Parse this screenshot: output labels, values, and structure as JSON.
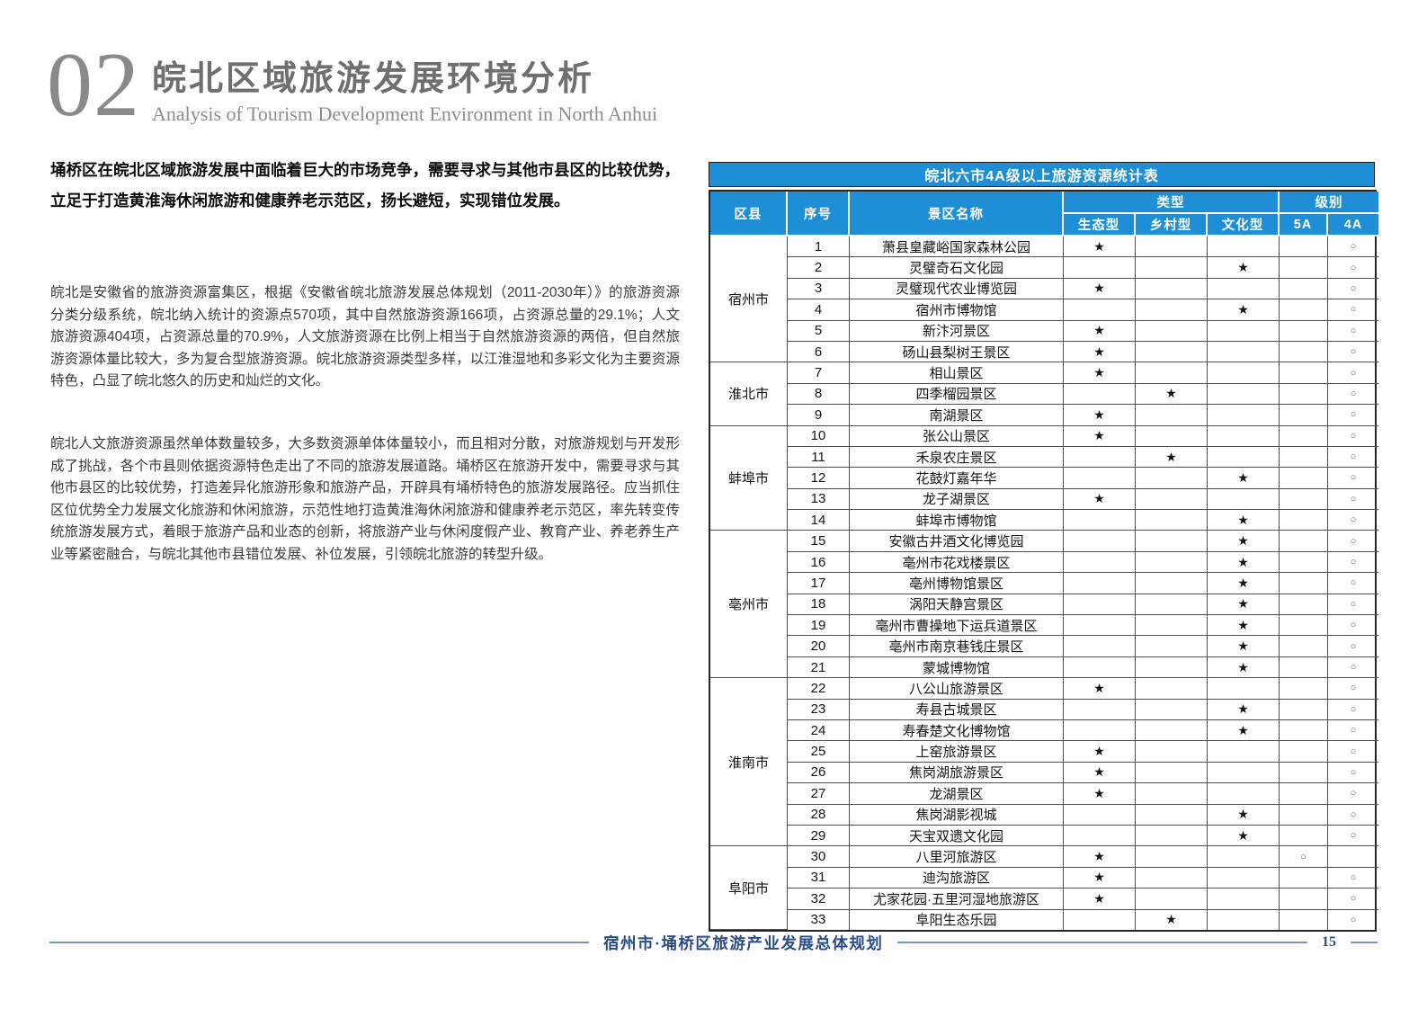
{
  "header": {
    "section_number": "02",
    "title_cn": "皖北区域旅游发展环境分析",
    "title_en": "Analysis of Tourism Development Environment in North Anhui"
  },
  "intro": {
    "lead_paragraph": "埇桥区在皖北区域旅游发展中面临着巨大的市场竞争，需要寻求与其他市县区的比较优势，立足于打造黄淮海休闲旅游和健康养老示范区，扬长避短，实现错位发展。",
    "paragraphs": [
      "皖北是安徽省的旅游资源富集区，根据《安徽省皖北旅游发展总体规划（2011-2030年）》的旅游资源分类分级系统，皖北纳入统计的资源点570项，其中自然旅游资源166项，占资源总量的29.1%；人文旅游资源404项，占资源总量的70.9%，人文旅游资源在比例上相当于自然旅游资源的两倍，但自然旅游资源体量比较大，多为复合型旅游资源。皖北旅游资源类型多样，以江淮湿地和多彩文化为主要资源特色，凸显了皖北悠久的历史和灿烂的文化。",
      "皖北人文旅游资源虽然单体数量较多，大多数资源单体体量较小，而且相对分散，对旅游规划与开发形成了挑战，各个市县则依据资源特色走出了不同的旅游发展道路。埇桥区在旅游开发中，需要寻求与其他市县区的比较优势，打造差异化旅游形象和旅游产品，开辟具有埇桥特色的旅游发展路径。应当抓住区位优势全力发展文化旅游和休闲旅游，示范性地打造黄淮海休闲旅游和健康养老示范区，率先转变传统旅游发展方式，着眼于旅游产品和业态的创新，将旅游产业与休闲度假产业、教育产业、养老养生产业等紧密融合，与皖北其他市县错位发展、补位发展，引领皖北旅游的转型升级。"
    ]
  },
  "table": {
    "title": "皖北六市4A级以上旅游资源统计表",
    "headers": {
      "district": "区县",
      "index": "序号",
      "name": "景区名称",
      "type_group": "类型",
      "level_group": "级别",
      "types": [
        "生态型",
        "乡村型",
        "文化型"
      ],
      "levels": [
        "5A",
        "4A"
      ]
    },
    "marks": {
      "type_mark": "★",
      "level_mark": "○"
    },
    "groups": [
      {
        "district": "宿州市",
        "rows": [
          {
            "no": "1",
            "name": "萧县皇藏峪国家森林公园",
            "type": "eco",
            "level": "4A"
          },
          {
            "no": "2",
            "name": "灵璧奇石文化园",
            "type": "culture",
            "level": "4A"
          },
          {
            "no": "3",
            "name": "灵璧现代农业博览园",
            "type": "eco",
            "level": "4A"
          },
          {
            "no": "4",
            "name": "宿州市博物馆",
            "type": "culture",
            "level": "4A"
          },
          {
            "no": "5",
            "name": "新汴河景区",
            "type": "eco",
            "level": "4A"
          },
          {
            "no": "6",
            "name": "砀山县梨树王景区",
            "type": "eco",
            "level": "4A"
          }
        ]
      },
      {
        "district": "淮北市",
        "rows": [
          {
            "no": "7",
            "name": "相山景区",
            "type": "eco",
            "level": "4A"
          },
          {
            "no": "8",
            "name": "四季榴园景区",
            "type": "village",
            "level": "4A"
          },
          {
            "no": "9",
            "name": "南湖景区",
            "type": "eco",
            "level": "4A"
          }
        ]
      },
      {
        "district": "蚌埠市",
        "rows": [
          {
            "no": "10",
            "name": "张公山景区",
            "type": "eco",
            "level": "4A"
          },
          {
            "no": "11",
            "name": "禾泉农庄景区",
            "type": "village",
            "level": "4A"
          },
          {
            "no": "12",
            "name": "花鼓灯嘉年华",
            "type": "culture",
            "level": "4A"
          },
          {
            "no": "13",
            "name": "龙子湖景区",
            "type": "eco",
            "level": "4A"
          },
          {
            "no": "14",
            "name": "蚌埠市博物馆",
            "type": "culture",
            "level": "4A"
          }
        ]
      },
      {
        "district": "亳州市",
        "rows": [
          {
            "no": "15",
            "name": "安徽古井酒文化博览园",
            "type": "culture",
            "level": "4A"
          },
          {
            "no": "16",
            "name": "亳州市花戏楼景区",
            "type": "culture",
            "level": "4A"
          },
          {
            "no": "17",
            "name": "亳州博物馆景区",
            "type": "culture",
            "level": "4A"
          },
          {
            "no": "18",
            "name": "涡阳天静宫景区",
            "type": "culture",
            "level": "4A"
          },
          {
            "no": "19",
            "name": "亳州市曹操地下运兵道景区",
            "type": "culture",
            "level": "4A"
          },
          {
            "no": "20",
            "name": "亳州市南京巷钱庄景区",
            "type": "culture",
            "level": "4A"
          },
          {
            "no": "21",
            "name": "蒙城博物馆",
            "type": "culture",
            "level": "4A"
          }
        ]
      },
      {
        "district": "淮南市",
        "rows": [
          {
            "no": "22",
            "name": "八公山旅游景区",
            "type": "eco",
            "level": "4A"
          },
          {
            "no": "23",
            "name": "寿县古城景区",
            "type": "culture",
            "level": "4A"
          },
          {
            "no": "24",
            "name": "寿春楚文化博物馆",
            "type": "culture",
            "level": "4A"
          },
          {
            "no": "25",
            "name": "上窑旅游景区",
            "type": "eco",
            "level": "4A"
          },
          {
            "no": "26",
            "name": "焦岗湖旅游景区",
            "type": "eco",
            "level": "4A"
          },
          {
            "no": "27",
            "name": "龙湖景区",
            "type": "eco",
            "level": "4A"
          },
          {
            "no": "28",
            "name": "焦岗湖影视城",
            "type": "culture",
            "level": "4A"
          },
          {
            "no": "29",
            "name": "天宝双遗文化园",
            "type": "culture",
            "level": "4A"
          }
        ]
      },
      {
        "district": "阜阳市",
        "rows": [
          {
            "no": "30",
            "name": "八里河旅游区",
            "type": "eco",
            "level": "5A"
          },
          {
            "no": "31",
            "name": "迪沟旅游区",
            "type": "eco",
            "level": "4A"
          },
          {
            "no": "32",
            "name": "尤家花园·五里河湿地旅游区",
            "type": "eco",
            "level": "4A"
          },
          {
            "no": "33",
            "name": "阜阳生态乐园",
            "type": "village",
            "level": "4A"
          }
        ]
      }
    ]
  },
  "footer": {
    "doc_title": "宿州市·埇桥区旅游产业发展总体规划",
    "page_number": "15"
  },
  "colors": {
    "table_blue": "#1E8FD6",
    "footer_blue": "#2B4D86",
    "footer_line": "#7A93C0"
  }
}
